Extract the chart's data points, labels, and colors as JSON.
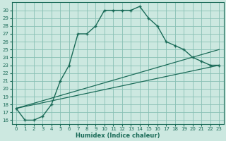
{
  "xlabel": "Humidex (Indice chaleur)",
  "background_color": "#cce8e0",
  "grid_color": "#88c0b4",
  "line_color": "#1a6b58",
  "xlim": [
    -0.5,
    23.5
  ],
  "ylim": [
    15.5,
    31
  ],
  "xticks": [
    0,
    1,
    2,
    3,
    4,
    5,
    6,
    7,
    8,
    9,
    10,
    11,
    12,
    13,
    14,
    15,
    16,
    17,
    18,
    19,
    20,
    21,
    22,
    23
  ],
  "yticks": [
    16,
    17,
    18,
    19,
    20,
    21,
    22,
    23,
    24,
    25,
    26,
    27,
    28,
    29,
    30
  ],
  "line1_x": [
    0,
    1,
    2,
    3,
    4,
    5,
    6,
    7,
    8,
    9,
    10,
    11,
    12,
    13,
    14,
    15,
    16,
    17,
    18,
    19,
    20,
    21,
    22,
    23
  ],
  "line1_y": [
    17.5,
    16.0,
    16.0,
    16.5,
    18.0,
    21.0,
    23.0,
    27.0,
    27.0,
    28.0,
    30.0,
    30.0,
    30.0,
    30.0,
    30.5,
    29.0,
    28.0,
    26.0,
    25.5,
    25.0,
    24.0,
    23.5,
    23.0,
    23.0
  ],
  "line2_x": [
    0,
    23
  ],
  "line2_y": [
    17.5,
    25.0
  ],
  "line3_x": [
    0,
    23
  ],
  "line3_y": [
    17.5,
    23.0
  ],
  "xlabel_fontsize": 6.0,
  "tick_fontsize": 5.0
}
